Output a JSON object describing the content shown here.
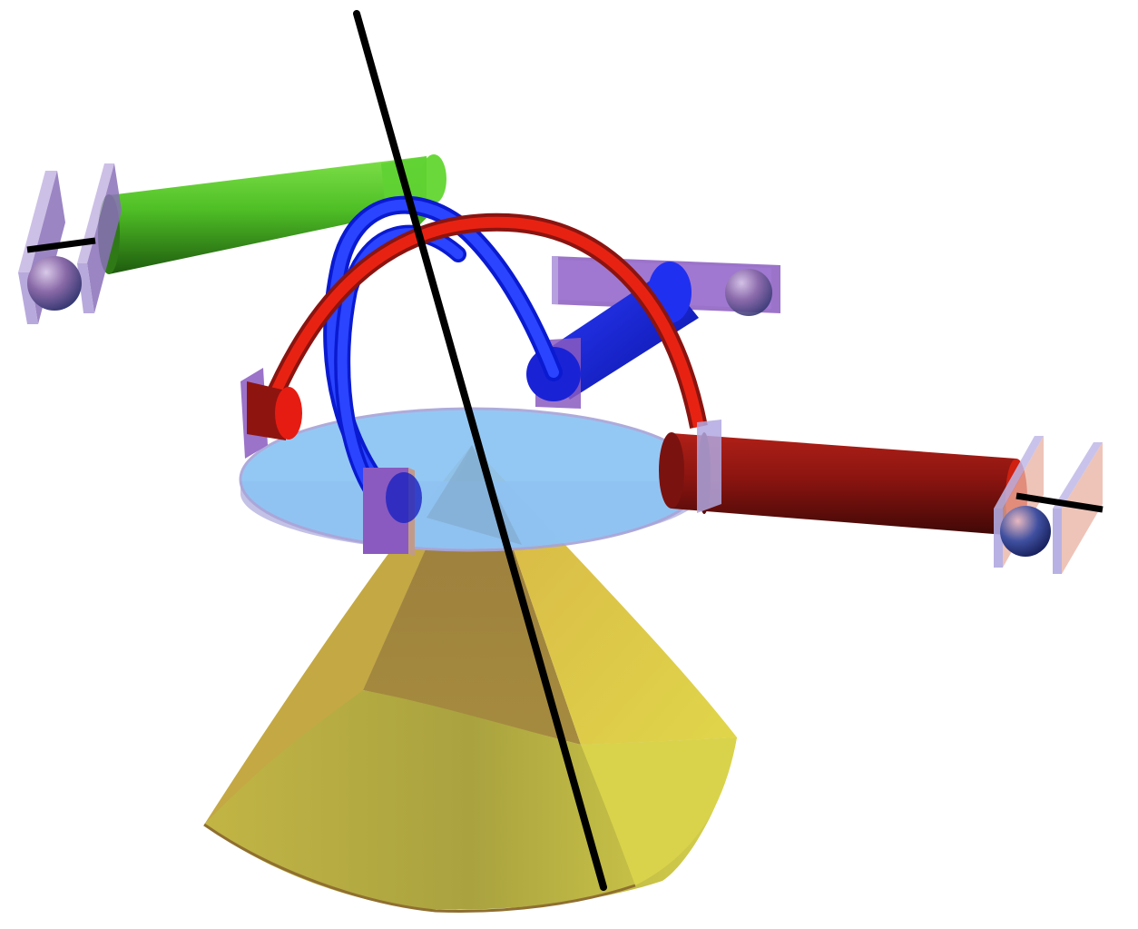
{
  "figure": {
    "description_visible_text": "",
    "components": [
      {
        "name": "yellow-cone",
        "color": "#d8c24a"
      },
      {
        "name": "blue-base-disk",
        "color": "#8fc2f2"
      },
      {
        "name": "black-axis-rod",
        "color": "#000000"
      },
      {
        "name": "green-arm",
        "color": "#55c22a"
      },
      {
        "name": "red-arm",
        "color": "#8a1410"
      },
      {
        "name": "blue-cylinder",
        "color": "#1a24e0"
      },
      {
        "name": "red-arc",
        "color": "#e21e12"
      },
      {
        "name": "blue-arcs",
        "color": "#1030ee"
      },
      {
        "name": "purple-brackets",
        "color": "#8a5ac0"
      },
      {
        "name": "spheres",
        "color": "#8a80b0"
      }
    ]
  }
}
